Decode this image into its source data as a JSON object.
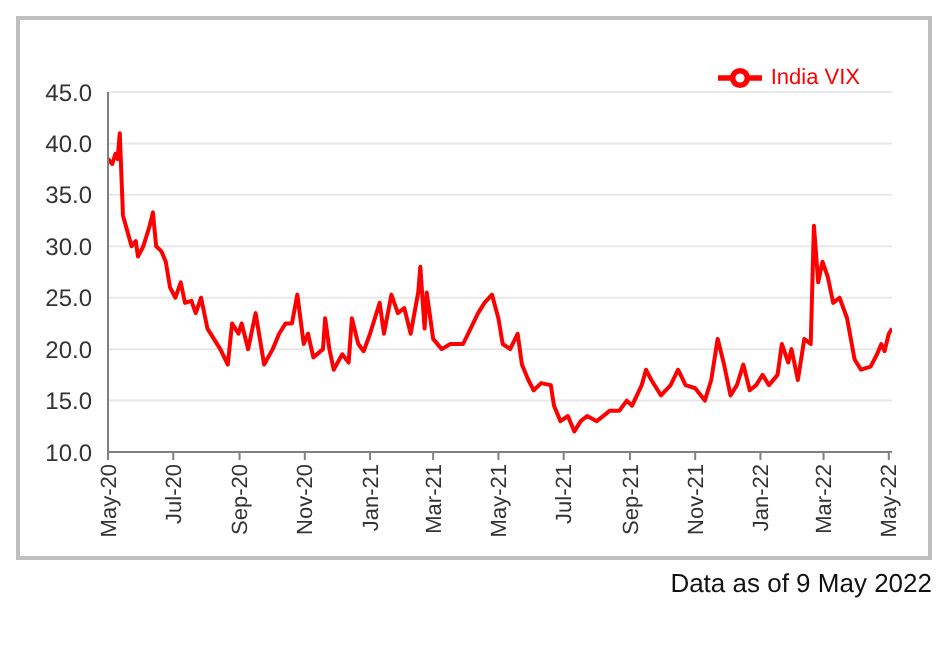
{
  "chart_data": {
    "type": "line",
    "x": [
      "2020-05-01",
      "2020-05-05",
      "2020-05-08",
      "2020-05-10",
      "2020-05-12",
      "2020-05-15",
      "2020-05-19",
      "2020-05-23",
      "2020-05-27",
      "2020-05-29",
      "2020-06-03",
      "2020-06-09",
      "2020-06-12",
      "2020-06-15",
      "2020-06-20",
      "2020-06-24",
      "2020-06-28",
      "2020-07-03",
      "2020-07-08",
      "2020-07-12",
      "2020-07-18",
      "2020-07-22",
      "2020-07-27",
      "2020-08-02",
      "2020-08-08",
      "2020-08-14",
      "2020-08-21",
      "2020-08-25",
      "2020-08-31",
      "2020-09-03",
      "2020-09-09",
      "2020-09-16",
      "2020-09-24",
      "2020-10-02",
      "2020-10-08",
      "2020-10-14",
      "2020-10-20",
      "2020-10-25",
      "2020-10-31",
      "2020-11-04",
      "2020-11-09",
      "2020-11-18",
      "2020-11-20",
      "2020-11-24",
      "2020-11-28",
      "2020-12-06",
      "2020-12-12",
      "2020-12-15",
      "2020-12-21",
      "2020-12-26",
      "2021-01-01",
      "2021-01-10",
      "2021-01-14",
      "2021-01-21",
      "2021-01-27",
      "2021-02-02",
      "2021-02-08",
      "2021-02-15",
      "2021-02-17",
      "2021-02-21",
      "2021-02-23",
      "2021-03-01",
      "2021-03-09",
      "2021-03-17",
      "2021-03-29",
      "2021-04-05",
      "2021-04-12",
      "2021-04-18",
      "2021-04-25",
      "2021-05-01",
      "2021-05-05",
      "2021-05-12",
      "2021-05-19",
      "2021-05-23",
      "2021-05-29",
      "2021-06-03",
      "2021-06-10",
      "2021-06-19",
      "2021-06-22",
      "2021-06-28",
      "2021-07-05",
      "2021-07-11",
      "2021-07-17",
      "2021-07-23",
      "2021-08-01",
      "2021-08-13",
      "2021-08-22",
      "2021-08-29",
      "2021-09-03",
      "2021-09-12",
      "2021-09-16",
      "2021-09-21",
      "2021-09-30",
      "2021-10-09",
      "2021-10-16",
      "2021-10-23",
      "2021-11-01",
      "2021-11-10",
      "2021-11-16",
      "2021-11-22",
      "2021-11-28",
      "2021-12-04",
      "2021-12-10",
      "2021-12-16",
      "2021-12-22",
      "2021-12-28",
      "2022-01-03",
      "2022-01-09",
      "2022-01-17",
      "2022-01-21",
      "2022-01-27",
      "2022-01-30",
      "2022-02-05",
      "2022-02-11",
      "2022-02-17",
      "2022-02-20",
      "2022-02-24",
      "2022-02-28",
      "2022-03-05",
      "2022-03-10",
      "2022-03-16",
      "2022-03-23",
      "2022-03-30",
      "2022-04-05",
      "2022-04-14",
      "2022-04-20",
      "2022-04-24",
      "2022-04-27",
      "2022-05-01",
      "2022-05-04"
    ],
    "series": [
      {
        "name": "India VIX",
        "color": "#ff0000",
        "values": [
          38.5,
          38,
          39,
          38.5,
          41,
          33,
          31.5,
          30,
          30.5,
          29,
          30,
          32,
          33.3,
          30,
          29.5,
          28.5,
          26,
          25,
          26.5,
          24.5,
          24.7,
          23.5,
          25,
          22,
          21,
          20,
          18.5,
          22.5,
          21.5,
          22.5,
          20,
          23.5,
          18.5,
          20,
          21.5,
          22.5,
          22.5,
          25.3,
          20.5,
          21.5,
          19.2,
          20,
          23,
          20,
          18,
          19.5,
          18.7,
          23,
          20.5,
          19.8,
          21.5,
          24.5,
          21.5,
          25.3,
          23.5,
          24,
          21.5,
          25.5,
          28,
          22,
          25.5,
          21,
          20,
          20.5,
          20.5,
          22,
          23.5,
          24.5,
          25.3,
          23,
          20.5,
          20,
          21.5,
          18.5,
          17,
          16,
          16.7,
          16.5,
          14.5,
          13,
          13.5,
          12,
          13,
          13.5,
          13,
          14,
          14,
          15,
          14.5,
          16.5,
          18,
          17,
          15.5,
          16.5,
          18,
          16.5,
          16.2,
          15,
          17,
          21,
          18.5,
          15.5,
          16.5,
          18.5,
          16,
          16.5,
          17.5,
          16.5,
          17.5,
          20.5,
          18.7,
          20,
          17,
          21,
          20.5,
          32,
          26.5,
          28.5,
          27,
          24.5,
          25,
          23,
          19,
          18,
          18.3,
          19.5,
          20.5,
          19.8,
          21.5,
          22
        ]
      }
    ],
    "xlim": [
      "2020-05-01",
      "2022-05-04"
    ],
    "xticks": [
      {
        "value": "2020-05-01",
        "label": "May-20"
      },
      {
        "value": "2020-07-01",
        "label": "Jul-20"
      },
      {
        "value": "2020-09-01",
        "label": "Sep-20"
      },
      {
        "value": "2020-11-01",
        "label": "Nov-20"
      },
      {
        "value": "2021-01-01",
        "label": "Jan-21"
      },
      {
        "value": "2021-03-01",
        "label": "Mar-21"
      },
      {
        "value": "2021-05-01",
        "label": "May-21"
      },
      {
        "value": "2021-07-01",
        "label": "Jul-21"
      },
      {
        "value": "2021-09-01",
        "label": "Sep-21"
      },
      {
        "value": "2021-11-01",
        "label": "Nov-21"
      },
      {
        "value": "2022-01-01",
        "label": "Jan-22"
      },
      {
        "value": "2022-03-01",
        "label": "Mar-22"
      },
      {
        "value": "2022-05-01",
        "label": "May-22"
      }
    ],
    "ylim": [
      10,
      45
    ],
    "yticks": [
      {
        "value": 10,
        "label": "10.0"
      },
      {
        "value": 15,
        "label": "15.0"
      },
      {
        "value": 20,
        "label": "20.0"
      },
      {
        "value": 25,
        "label": "25.0"
      },
      {
        "value": 30,
        "label": "30.0"
      },
      {
        "value": 35,
        "label": "35.0"
      },
      {
        "value": 40,
        "label": "40.0"
      },
      {
        "value": 45,
        "label": "45.0"
      }
    ],
    "grid": "y",
    "legend": "top right",
    "marker": "none",
    "line_style": "solid",
    "annotations": [
      "Data as of 9 May 2022"
    ]
  }
}
